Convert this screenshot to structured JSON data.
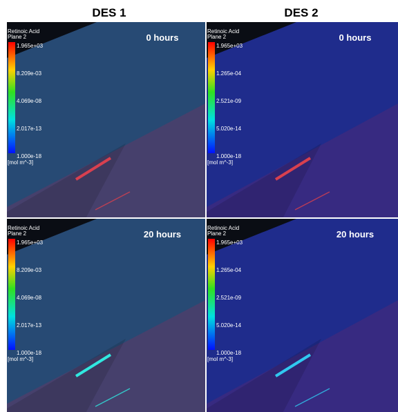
{
  "columns": [
    {
      "title": "DES 1"
    },
    {
      "title": "DES 2"
    }
  ],
  "panels": [
    {
      "time": "0 hours",
      "legend": {
        "title": "Retinoic Acid",
        "subtitle": "Plane 2",
        "labels": [
          "1.965e+03",
          "8.209e-03",
          "4.069e-08",
          "2.017e-13",
          "1.000e-18"
        ],
        "unit": "[mol m^-3]"
      }
    },
    {
      "time": "0 hours",
      "legend": {
        "title": "Retinoic Acid",
        "subtitle": "Plane 2",
        "labels": [
          "1.965e+03",
          "1.265e-04",
          "2.521e-09",
          "5.020e-14",
          "1.000e-18"
        ],
        "unit": "[mol m^-3]"
      }
    },
    {
      "time": "20 hours",
      "legend": {
        "title": "Retinoic Acid",
        "subtitle": "Plane 2",
        "labels": [
          "1.965e+03",
          "8.209e-03",
          "4.069e-08",
          "2.017e-13",
          "1.000e-18"
        ],
        "unit": "[mol m^-3]"
      }
    },
    {
      "time": "20 hours",
      "legend": {
        "title": "Retinoic Acid",
        "subtitle": "Plane 2",
        "labels": [
          "1.965e+03",
          "1.265e-04",
          "2.521e-09",
          "5.020e-14",
          "1.000e-18"
        ],
        "unit": "[mol m^-3]"
      }
    }
  ]
}
